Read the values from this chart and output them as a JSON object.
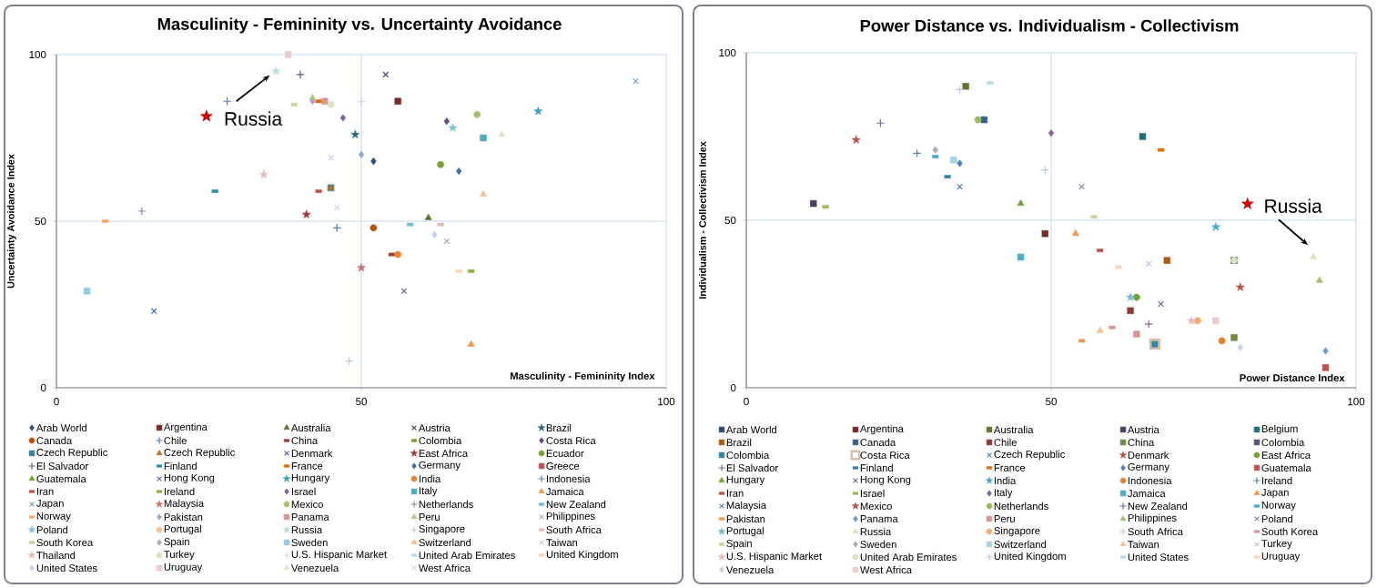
{
  "chart_data": [
    {
      "type": "scatter",
      "title": "Masculinity - Femininity vs. Uncertainty Avoidance",
      "xlabel": "Masculinity - Femininity Index",
      "ylabel": "Uncertainty Avoidance Index",
      "xlim": [
        0,
        100
      ],
      "ylim": [
        0,
        100
      ],
      "xticks": [
        0,
        50,
        100
      ],
      "yticks": [
        0,
        50,
        100
      ],
      "grid": true,
      "legend": "bottom",
      "annotations": [
        {
          "text": "Russia",
          "x": 36,
          "y": 95
        }
      ],
      "series": [
        {
          "name": "Arab World",
          "color": "#2C4D75",
          "marker": "diamond",
          "x": [
            52
          ],
          "values": [
            68
          ]
        },
        {
          "name": "Argentina",
          "color": "#772C2A",
          "marker": "square",
          "x": [
            56
          ],
          "values": [
            86
          ]
        },
        {
          "name": "Australia",
          "color": "#5F7530",
          "marker": "triangle",
          "x": [
            61
          ],
          "values": [
            51
          ]
        },
        {
          "name": "Austria",
          "color": "#4D3B62",
          "marker": "cross",
          "x": [
            54
          ],
          "values": [
            94
          ]
        },
        {
          "name": "Brazil",
          "color": "#276A7C",
          "marker": "star",
          "x": [
            49
          ],
          "values": [
            76
          ]
        },
        {
          "name": "Canada",
          "color": "#B65708",
          "marker": "circle",
          "x": [
            52
          ],
          "values": [
            48
          ]
        },
        {
          "name": "Chile",
          "color": "#4F81BD",
          "marker": "plus",
          "x": [
            28
          ],
          "values": [
            86
          ]
        },
        {
          "name": "China",
          "color": "#A33A37",
          "x": [
            55
          ],
          "values": [
            40
          ]
        },
        {
          "name": "Colombia",
          "color": "#77A033",
          "x": [
            null
          ],
          "values": [
            null
          ]
        },
        {
          "name": "Costa Rica",
          "color": "#604A7B",
          "marker": "diamond",
          "x": [
            64
          ],
          "values": [
            80
          ]
        },
        {
          "name": "Czech Republic",
          "color": "#31859C",
          "marker": "square",
          "x": [
            45
          ],
          "values": [
            60
          ]
        },
        {
          "name": "Czech Republic",
          "color": "#C0701E",
          "marker": "triangle",
          "x": [
            45
          ],
          "values": [
            60
          ]
        },
        {
          "name": "Denmark",
          "color": "#3A6BA8",
          "marker": "cross",
          "x": [
            16
          ],
          "values": [
            23
          ]
        },
        {
          "name": "East Africa",
          "color": "#A33A37",
          "marker": "star",
          "x": [
            41
          ],
          "values": [
            52
          ]
        },
        {
          "name": "Ecuador",
          "color": "#77A033",
          "marker": "circle",
          "x": [
            63
          ],
          "values": [
            67
          ]
        },
        {
          "name": "El Salvador",
          "color": "#6A4F8E",
          "marker": "plus",
          "x": [
            40
          ],
          "values": [
            94
          ]
        },
        {
          "name": "Finland",
          "color": "#2C8FA8",
          "x": [
            26
          ],
          "values": [
            59
          ]
        },
        {
          "name": "France",
          "color": "#E46C0A",
          "x": [
            43
          ],
          "values": [
            86
          ]
        },
        {
          "name": "Germany",
          "color": "#3F6FB0",
          "marker": "diamond",
          "x": [
            66
          ],
          "values": [
            65
          ]
        },
        {
          "name": "Greece",
          "color": "#C0504D",
          "marker": "square",
          "x": [
            null
          ],
          "values": [
            null
          ]
        },
        {
          "name": "Guatemala",
          "color": "#77A033",
          "marker": "triangle",
          "x": [
            null
          ],
          "values": [
            null
          ]
        },
        {
          "name": "Hong Kong",
          "color": "#7B5EA0",
          "marker": "cross",
          "x": [
            57
          ],
          "values": [
            29
          ]
        },
        {
          "name": "Hungary",
          "color": "#37A2C0",
          "marker": "star",
          "x": [
            79
          ],
          "values": [
            83
          ]
        },
        {
          "name": "India",
          "color": "#E8822C",
          "marker": "circle",
          "x": [
            56
          ],
          "values": [
            40
          ]
        },
        {
          "name": "Indonesia",
          "color": "#4F81BD",
          "marker": "plus",
          "x": [
            46
          ],
          "values": [
            48
          ]
        },
        {
          "name": "Iran",
          "color": "#C0504D",
          "x": [
            43
          ],
          "values": [
            59
          ]
        },
        {
          "name": "Ireland",
          "color": "#8DB04A",
          "x": [
            68
          ],
          "values": [
            35
          ]
        },
        {
          "name": "Israel",
          "color": "#8064A2",
          "marker": "diamond",
          "x": [
            47
          ],
          "values": [
            81
          ]
        },
        {
          "name": "Italy",
          "color": "#4BACC6",
          "marker": "square",
          "x": [
            70
          ],
          "values": [
            75
          ]
        },
        {
          "name": "Jamaica",
          "color": "#F79646",
          "marker": "triangle",
          "x": [
            68
          ],
          "values": [
            13
          ]
        },
        {
          "name": "Japan",
          "color": "#729ACA",
          "marker": "cross",
          "x": [
            95
          ],
          "values": [
            92
          ]
        },
        {
          "name": "Malaysia",
          "color": "#CD7371",
          "marker": "star",
          "x": [
            50
          ],
          "values": [
            36
          ]
        },
        {
          "name": "Mexico",
          "color": "#A3C16B",
          "marker": "circle",
          "x": [
            69
          ],
          "values": [
            82
          ]
        },
        {
          "name": "Netherlands",
          "color": "#9983B5",
          "marker": "plus",
          "x": [
            14
          ],
          "values": [
            53
          ]
        },
        {
          "name": "New Zealand",
          "color": "#6FBDD1",
          "x": [
            58
          ],
          "values": [
            49
          ]
        },
        {
          "name": "Norway",
          "color": "#F9AB6B",
          "x": [
            8
          ],
          "values": [
            50
          ]
        },
        {
          "name": "Pakistan",
          "color": "#8FA9D6",
          "marker": "diamond",
          "x": [
            50
          ],
          "values": [
            70
          ]
        },
        {
          "name": "Panama",
          "color": "#D99694",
          "marker": "square",
          "x": [
            44
          ],
          "values": [
            86
          ]
        },
        {
          "name": "Peru",
          "color": "#B5CC85",
          "marker": "triangle",
          "x": [
            42
          ],
          "values": [
            87
          ]
        },
        {
          "name": "Philippines",
          "color": "#B3A2C7",
          "marker": "cross",
          "x": [
            64
          ],
          "values": [
            44
          ]
        },
        {
          "name": "Poland",
          "color": "#7CC3D6",
          "marker": "star",
          "x": [
            65
          ],
          "values": [
            78
          ]
        },
        {
          "name": "Portugal",
          "color": "#FAC090",
          "marker": "circle",
          "x": [
            null
          ],
          "values": [
            null
          ]
        },
        {
          "name": "Russia",
          "color": "#B7DDE8",
          "marker": "star",
          "x": [
            36
          ],
          "values": [
            95
          ]
        },
        {
          "name": "Singapore",
          "color": "#B9CDE5",
          "marker": "plus",
          "x": [
            48
          ],
          "values": [
            8
          ]
        },
        {
          "name": "South Africa",
          "color": "#E6B9B8",
          "x": [
            63
          ],
          "values": [
            49
          ]
        },
        {
          "name": "South Korea",
          "color": "#C3D69B",
          "x": [
            39
          ],
          "values": [
            85
          ]
        },
        {
          "name": "Spain",
          "color": "#B3A2C7",
          "marker": "diamond",
          "x": [
            42
          ],
          "values": [
            86
          ]
        },
        {
          "name": "Sweden",
          "color": "#93CDDD",
          "marker": "square",
          "x": [
            5
          ],
          "values": [
            29
          ]
        },
        {
          "name": "Switzerland",
          "color": "#FAC090",
          "marker": "triangle",
          "x": [
            70
          ],
          "values": [
            58
          ]
        },
        {
          "name": "Taiwan",
          "color": "#C6D0E8",
          "marker": "cross",
          "x": [
            45
          ],
          "values": [
            69
          ]
        },
        {
          "name": "Thailand",
          "color": "#E6B9B8",
          "marker": "star",
          "x": [
            34
          ],
          "values": [
            64
          ]
        },
        {
          "name": "Turkey",
          "color": "#D7E4BD",
          "marker": "circle",
          "x": [
            45
          ],
          "values": [
            85
          ]
        },
        {
          "name": "U.S. Hispanic Market",
          "color": "#DCD2E8",
          "marker": "plus",
          "x": [
            50
          ],
          "values": [
            86
          ]
        },
        {
          "name": "United Arab Emirates",
          "color": "#B7DDE8",
          "x": [
            null
          ],
          "values": [
            null
          ]
        },
        {
          "name": "United Kingdom",
          "color": "#FCD5B5",
          "x": [
            66
          ],
          "values": [
            35
          ]
        },
        {
          "name": "United States",
          "color": "#C5D3EA",
          "marker": "diamond",
          "x": [
            62
          ],
          "values": [
            46
          ]
        },
        {
          "name": "Uruguay",
          "color": "#EBCBCB",
          "marker": "square",
          "x": [
            38
          ],
          "values": [
            100
          ]
        },
        {
          "name": "Venezuela",
          "color": "#DDE7CB",
          "marker": "triangle",
          "x": [
            73
          ],
          "values": [
            76
          ]
        },
        {
          "name": "West Africa",
          "color": "#DAD3E6",
          "marker": "cross",
          "x": [
            46
          ],
          "values": [
            54
          ]
        }
      ]
    },
    {
      "type": "scatter",
      "title": "Power Distance vs. Individualism - Collectivism",
      "xlabel": "Power Distance Index",
      "ylabel": "Individualism - Collectivism Index",
      "xlim": [
        0,
        100
      ],
      "ylim": [
        0,
        100
      ],
      "xticks": [
        0,
        50,
        100
      ],
      "yticks": [
        0,
        50,
        100
      ],
      "grid": true,
      "legend": "bottom",
      "annotations": [
        {
          "text": "Russia",
          "x": 93,
          "y": 39
        }
      ],
      "series": [
        {
          "name": "Arab World",
          "color": "#2C4D75",
          "marker": "square",
          "x": [
            80
          ],
          "values": [
            38
          ]
        },
        {
          "name": "Argentina",
          "color": "#772C2A",
          "marker": "square",
          "x": [
            49
          ],
          "values": [
            46
          ]
        },
        {
          "name": "Australia",
          "color": "#5F7530",
          "marker": "square",
          "x": [
            36
          ],
          "values": [
            90
          ]
        },
        {
          "name": "Austria",
          "color": "#4D3B62",
          "marker": "square",
          "x": [
            11
          ],
          "values": [
            55
          ]
        },
        {
          "name": "Belgium",
          "color": "#276A7C",
          "marker": "square",
          "x": [
            65
          ],
          "values": [
            75
          ]
        },
        {
          "name": "Brazil",
          "color": "#B65708",
          "marker": "square",
          "x": [
            69
          ],
          "values": [
            38
          ]
        },
        {
          "name": "Canada",
          "color": "#3A5F8B",
          "marker": "square",
          "x": [
            39
          ],
          "values": [
            80
          ]
        },
        {
          "name": "Chile",
          "color": "#8B3A38",
          "marker": "square",
          "x": [
            63
          ],
          "values": [
            23
          ]
        },
        {
          "name": "China",
          "color": "#6E8A3A",
          "marker": "square",
          "x": [
            80
          ],
          "values": [
            15
          ]
        },
        {
          "name": "Colombia",
          "color": "#5C4A78",
          "marker": "square",
          "x": [
            null
          ],
          "values": [
            null
          ]
        },
        {
          "name": "Colombia",
          "color": "#31859C",
          "marker": "square",
          "x": [
            67
          ],
          "values": [
            13
          ]
        },
        {
          "name": "Costa Rica",
          "color": "#D8BFA8",
          "marker": "squareframe",
          "x": [
            67
          ],
          "values": [
            13
          ]
        },
        {
          "name": "Czech Republic",
          "color": "#4F81BD",
          "marker": "cross",
          "x": [
            35
          ],
          "values": [
            60
          ]
        },
        {
          "name": "Denmark",
          "color": "#C0504D",
          "marker": "star",
          "x": [
            18
          ],
          "values": [
            74
          ]
        },
        {
          "name": "East Africa",
          "color": "#77A033",
          "marker": "circle",
          "x": [
            64
          ],
          "values": [
            27
          ]
        },
        {
          "name": "El Salvador",
          "color": "#8064A2",
          "marker": "plus",
          "x": [
            66
          ],
          "values": [
            19
          ]
        },
        {
          "name": "Finland",
          "color": "#31859C",
          "x": [
            33
          ],
          "values": [
            63
          ]
        },
        {
          "name": "France",
          "color": "#E46C0A",
          "x": [
            68
          ],
          "values": [
            71
          ]
        },
        {
          "name": "Germany",
          "color": "#4F81BD",
          "marker": "diamond",
          "x": [
            35
          ],
          "values": [
            67
          ]
        },
        {
          "name": "Guatemala",
          "color": "#C0504D",
          "marker": "square",
          "x": [
            95
          ],
          "values": [
            6
          ]
        },
        {
          "name": "Hungary",
          "color": "#77A033",
          "marker": "triangle",
          "x": [
            45
          ],
          "values": [
            55
          ]
        },
        {
          "name": "Hong Kong",
          "color": "#7B5EA0",
          "marker": "cross",
          "x": [
            68
          ],
          "values": [
            25
          ]
        },
        {
          "name": "India",
          "color": "#4BACC6",
          "marker": "star",
          "x": [
            77
          ],
          "values": [
            48
          ]
        },
        {
          "name": "Indonesia",
          "color": "#E8822C",
          "marker": "circle",
          "x": [
            78
          ],
          "values": [
            14
          ]
        },
        {
          "name": "Ireland",
          "color": "#4F81BD",
          "marker": "plus",
          "x": [
            28
          ],
          "values": [
            70
          ]
        },
        {
          "name": "Iran",
          "color": "#C0504D",
          "x": [
            58
          ],
          "values": [
            41
          ]
        },
        {
          "name": "Israel",
          "color": "#9BBB59",
          "x": [
            13
          ],
          "values": [
            54
          ]
        },
        {
          "name": "Italy",
          "color": "#8064A2",
          "marker": "diamond",
          "x": [
            50
          ],
          "values": [
            76
          ]
        },
        {
          "name": "Jamaica",
          "color": "#4BACC6",
          "marker": "square",
          "x": [
            45
          ],
          "values": [
            39
          ]
        },
        {
          "name": "Japan",
          "color": "#F79646",
          "marker": "triangle",
          "x": [
            54
          ],
          "values": [
            46
          ]
        },
        {
          "name": "Malaysia",
          "color": "#4F81BD",
          "marker": "cross",
          "x": [
            null
          ],
          "values": [
            null
          ]
        },
        {
          "name": "Mexico",
          "color": "#C0504D",
          "marker": "star",
          "x": [
            81
          ],
          "values": [
            30
          ]
        },
        {
          "name": "Netherlands",
          "color": "#9BBB59",
          "marker": "circle",
          "x": [
            38
          ],
          "values": [
            80
          ]
        },
        {
          "name": "New Zealand",
          "color": "#8064A2",
          "marker": "plus",
          "x": [
            22
          ],
          "values": [
            79
          ]
        },
        {
          "name": "Norway",
          "color": "#4BACC6",
          "x": [
            31
          ],
          "values": [
            69
          ]
        },
        {
          "name": "Pakistan",
          "color": "#F79646",
          "x": [
            55
          ],
          "values": [
            14
          ]
        },
        {
          "name": "Panama",
          "color": "#729ACA",
          "marker": "diamond",
          "x": [
            95
          ],
          "values": [
            11
          ]
        },
        {
          "name": "Peru",
          "color": "#D99694",
          "marker": "square",
          "x": [
            64
          ],
          "values": [
            16
          ]
        },
        {
          "name": "Philippines",
          "color": "#A3C16B",
          "marker": "triangle",
          "x": [
            94
          ],
          "values": [
            32
          ]
        },
        {
          "name": "Poland",
          "color": "#9983B5",
          "marker": "cross",
          "x": [
            55
          ],
          "values": [
            60
          ]
        },
        {
          "name": "Portugal",
          "color": "#6FBDD1",
          "marker": "star",
          "x": [
            63
          ],
          "values": [
            27
          ]
        },
        {
          "name": "Russia",
          "color": "#D7E4BD",
          "marker": "triangle",
          "x": [
            93
          ],
          "values": [
            39
          ]
        },
        {
          "name": "Singapore",
          "color": "#F9AB6B",
          "marker": "circle",
          "x": [
            74
          ],
          "values": [
            20
          ]
        },
        {
          "name": "South Africa",
          "color": "#B9CDE5",
          "marker": "plus",
          "x": [
            49
          ],
          "values": [
            65
          ]
        },
        {
          "name": "South Korea",
          "color": "#D99694",
          "x": [
            60
          ],
          "values": [
            18
          ]
        },
        {
          "name": "Spain",
          "color": "#C3D69B",
          "x": [
            57
          ],
          "values": [
            51
          ]
        },
        {
          "name": "Sweden",
          "color": "#B3A2C7",
          "marker": "diamond",
          "x": [
            31
          ],
          "values": [
            71
          ]
        },
        {
          "name": "Switzerland",
          "color": "#A5D5E2",
          "marker": "square",
          "x": [
            34
          ],
          "values": [
            68
          ]
        },
        {
          "name": "Taiwan",
          "color": "#FAC090",
          "marker": "triangle",
          "x": [
            58
          ],
          "values": [
            17
          ]
        },
        {
          "name": "Turkey",
          "color": "#B9C5E5",
          "marker": "cross",
          "x": [
            66
          ],
          "values": [
            37
          ]
        },
        {
          "name": "U.S. Hispanic Market",
          "color": "#E6B9B8",
          "marker": "star",
          "x": [
            73
          ],
          "values": [
            20
          ]
        },
        {
          "name": "United Arab Emirates",
          "color": "#D7E4BD",
          "marker": "circle",
          "x": [
            80
          ],
          "values": [
            38
          ]
        },
        {
          "name": "United Kingdom",
          "color": "#CCC1DA",
          "marker": "plus",
          "x": [
            35
          ],
          "values": [
            89
          ]
        },
        {
          "name": "United States",
          "color": "#B7DDE8",
          "x": [
            40
          ],
          "values": [
            91
          ]
        },
        {
          "name": "Uruguay",
          "color": "#FCD5B5",
          "x": [
            61
          ],
          "values": [
            36
          ]
        },
        {
          "name": "Venezuela",
          "color": "#C5D3EA",
          "marker": "diamond",
          "x": [
            81
          ],
          "values": [
            12
          ]
        },
        {
          "name": "West Africa",
          "color": "#EBCBCB",
          "marker": "square",
          "x": [
            77
          ],
          "values": [
            20
          ]
        }
      ]
    }
  ]
}
